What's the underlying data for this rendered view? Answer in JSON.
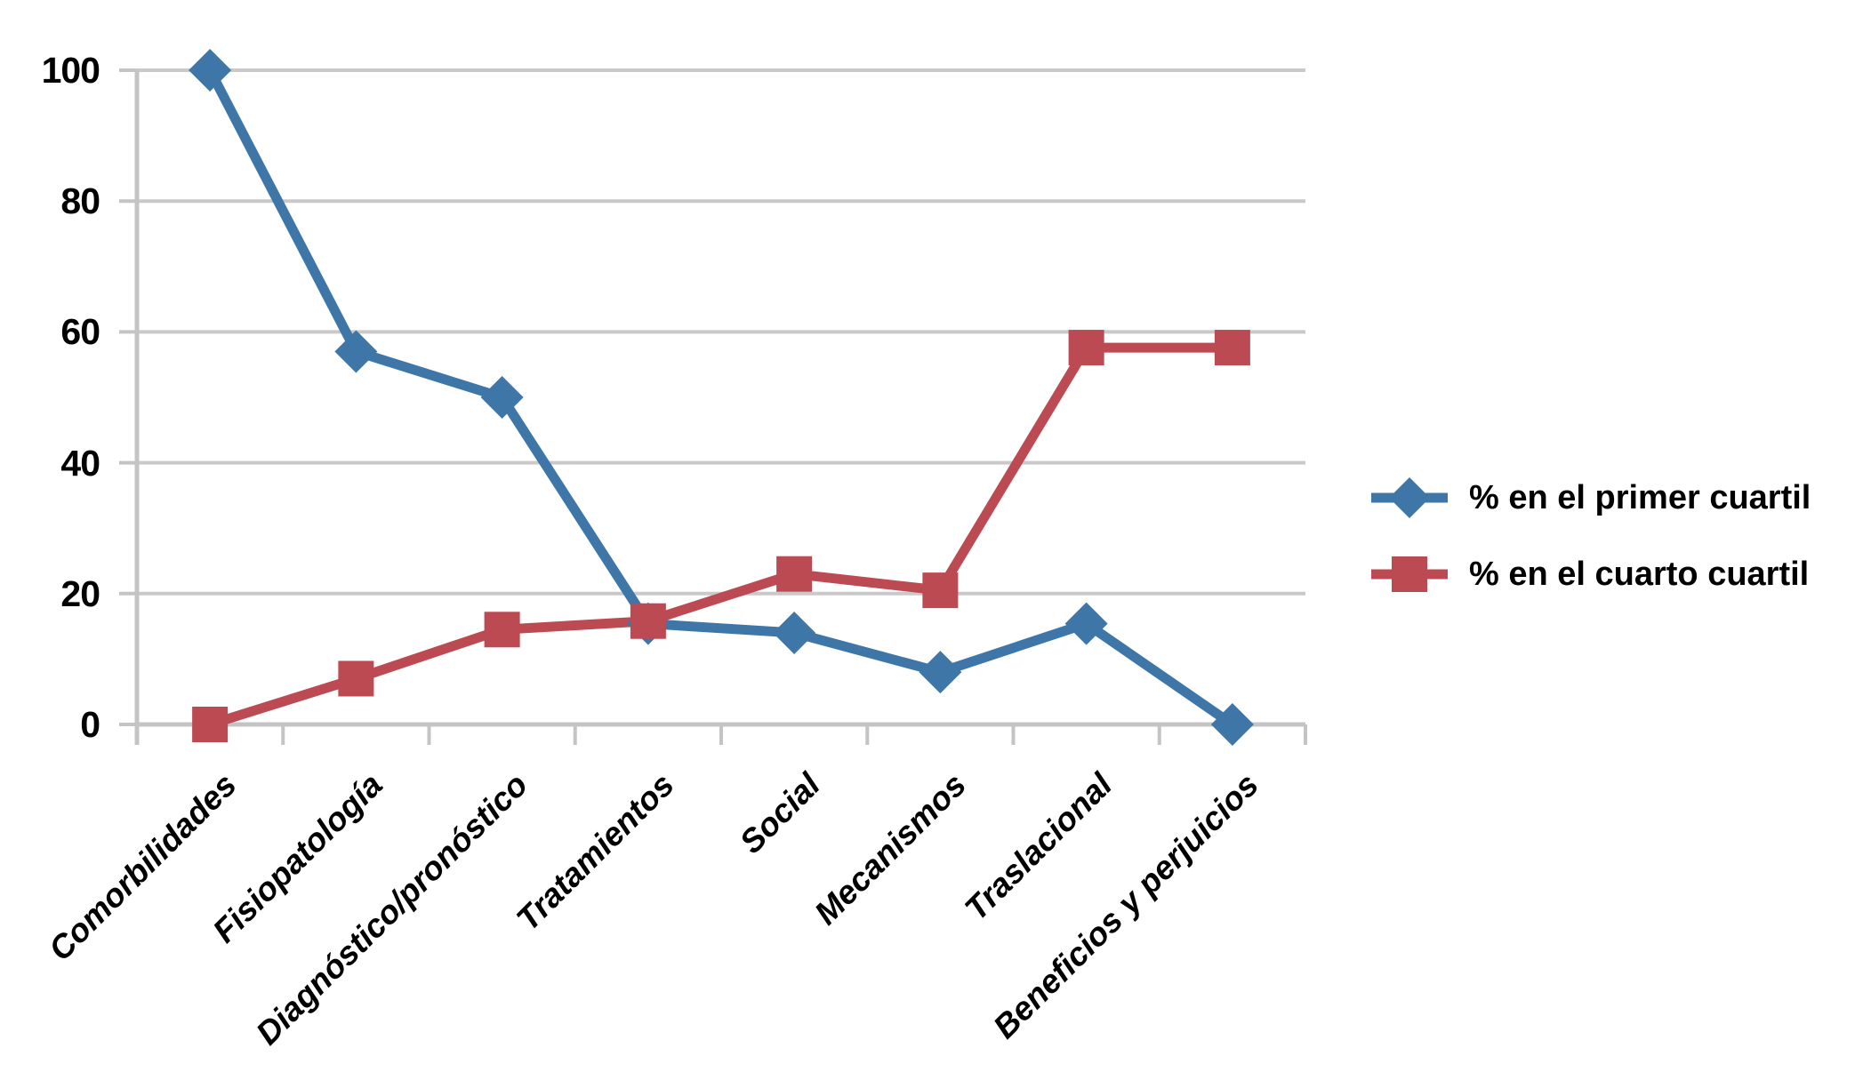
{
  "chart_data": {
    "type": "line",
    "title": "",
    "xlabel": "",
    "ylabel": "",
    "categories": [
      "Comorbilidades",
      "Fisiopatología",
      "Diagnóstico/pronóstico",
      "Tratamientos",
      "Social",
      "Mecanismos",
      "Traslacional",
      "Beneficios y perjuicios"
    ],
    "series": [
      {
        "name": "% en el primer cuartil",
        "marker": "diamond",
        "color": "#3E76A8",
        "values": [
          100,
          57,
          50,
          15.4,
          14,
          8,
          15.4,
          0
        ]
      },
      {
        "name": "% en el cuarto cuartil",
        "marker": "square",
        "color": "#BB4A52",
        "values": [
          0,
          7,
          14.5,
          15.8,
          23,
          20.5,
          57.6,
          57.6
        ]
      }
    ],
    "yticks": [
      0,
      20,
      40,
      60,
      80,
      100
    ],
    "ylim": [
      0,
      100
    ],
    "grid": true,
    "legend_position": "right",
    "gridline_color": "#C9C9C9",
    "axis_color": "#C4C4C4",
    "label_color": "#000000"
  }
}
